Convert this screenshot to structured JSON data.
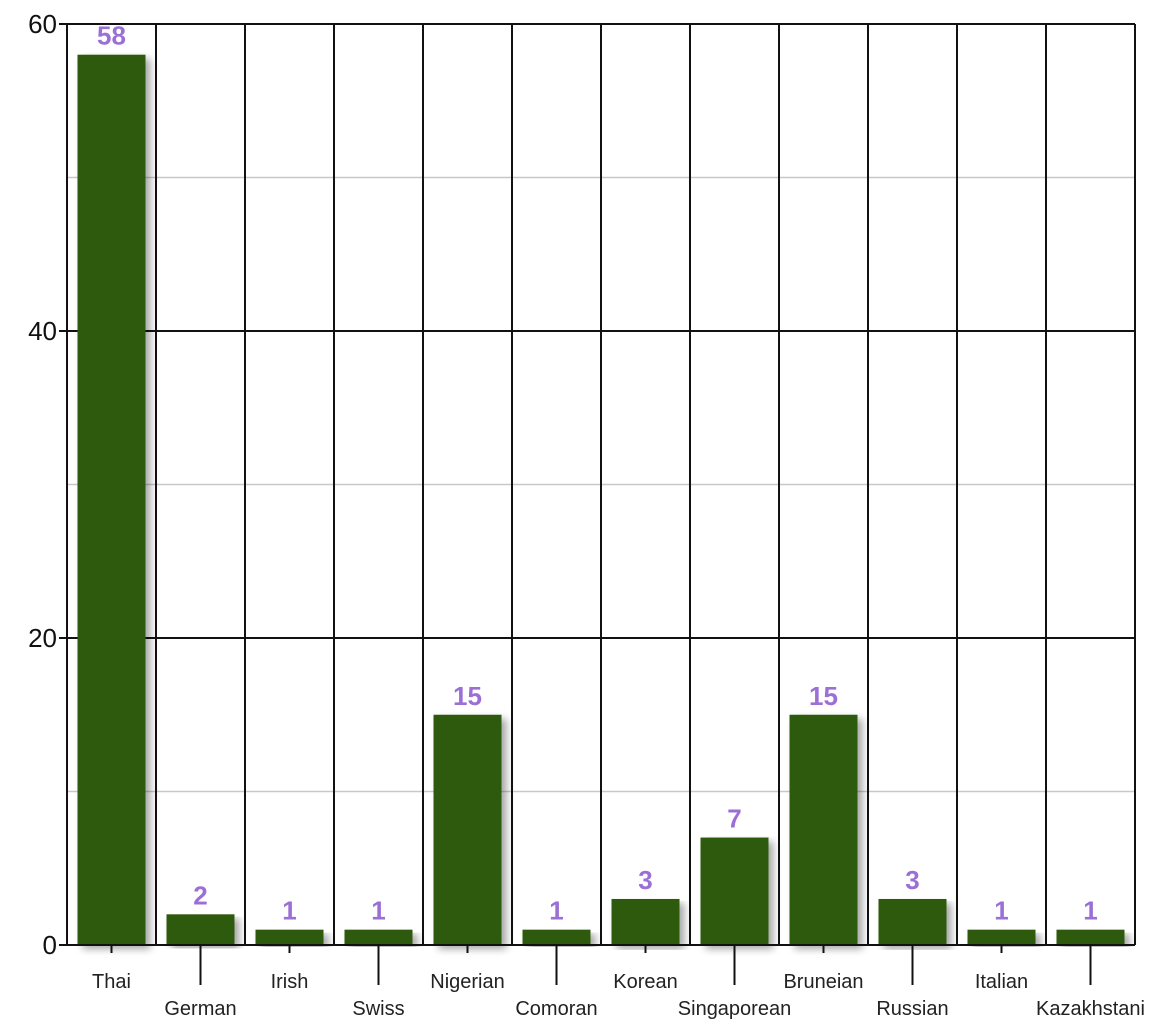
{
  "chart_data": {
    "type": "bar",
    "categories": [
      "Thai",
      "German",
      "Irish",
      "Swiss",
      "Nigerian",
      "Comoran",
      "Korean",
      "Singaporean",
      "Bruneian",
      "Russian",
      "Italian",
      "Kazakhstani"
    ],
    "values": [
      58,
      2,
      1,
      1,
      15,
      1,
      3,
      7,
      15,
      3,
      1,
      1
    ],
    "title": "",
    "xlabel": "",
    "ylabel": "",
    "ylim": [
      0,
      60
    ],
    "yticks": [
      0,
      20,
      40,
      60
    ],
    "grid": true,
    "bar_color": "#2d5a0a",
    "label_color": "#9b6fd6",
    "legend": "none"
  }
}
